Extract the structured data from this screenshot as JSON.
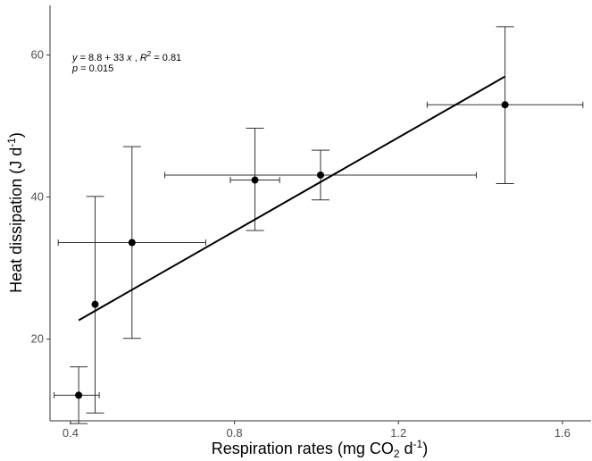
{
  "chart_data": {
    "type": "scatter",
    "xlabel_main": "Respiration rates (mg CO",
    "xlabel_sub": "2",
    "xlabel_mid": " d",
    "xlabel_sup": "-1",
    "xlabel_end": ")",
    "ylabel_main": "Heat dissipation (J d",
    "ylabel_sup": "-1",
    "ylabel_end": ")",
    "xlim": [
      0.35,
      1.67
    ],
    "ylim": [
      8.5,
      67
    ],
    "x_ticks": [
      0.4,
      0.8,
      1.2,
      1.6
    ],
    "x_tick_labels": [
      "0.4",
      "0.8",
      "1.2",
      "1.6"
    ],
    "y_ticks": [
      20,
      40,
      60
    ],
    "y_tick_labels": [
      "20",
      "40",
      "60"
    ],
    "grid": false,
    "points": [
      {
        "x": 0.42,
        "y": 12.1,
        "x_lo": 0.36,
        "x_hi": 0.47,
        "y_lo": 8.1,
        "y_hi": 16.1
      },
      {
        "x": 0.46,
        "y": 24.9,
        "x_lo": 0.46,
        "x_hi": 0.46,
        "y_lo": 9.6,
        "y_hi": 40.1
      },
      {
        "x": 0.55,
        "y": 33.6,
        "x_lo": 0.37,
        "x_hi": 0.73,
        "y_lo": 20.1,
        "y_hi": 47.1
      },
      {
        "x": 0.85,
        "y": 42.4,
        "x_lo": 0.79,
        "x_hi": 0.91,
        "y_lo": 35.3,
        "y_hi": 49.7
      },
      {
        "x": 1.01,
        "y": 43.1,
        "x_lo": 0.63,
        "x_hi": 1.39,
        "y_lo": 39.6,
        "y_hi": 46.6
      },
      {
        "x": 1.46,
        "y": 53.0,
        "x_lo": 1.27,
        "x_hi": 1.65,
        "y_lo": 41.9,
        "y_hi": 64.0
      }
    ],
    "fit_line": {
      "intercept": 8.8,
      "slope": 33,
      "x_start": 0.42,
      "x_end": 1.46
    },
    "annotation": {
      "eq_y": "y",
      "eq_body": " = 8.8 + 33 ",
      "eq_x": "x",
      "eq_sep": " , ",
      "eq_r": "R",
      "eq_r_sup": "2",
      "eq_r_val": " = 0.81",
      "p_label": "p",
      "p_val": " = 0.015"
    }
  }
}
